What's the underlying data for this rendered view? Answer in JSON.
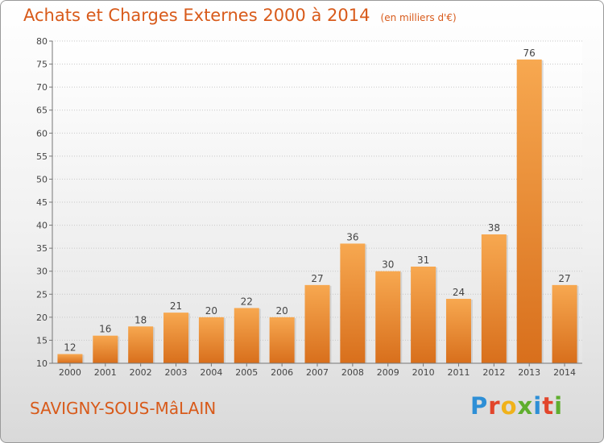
{
  "header": {
    "title": "Achats et Charges Externes 2000 à 2014",
    "subtitle": "(en milliers d'€)"
  },
  "footer": {
    "town": "SAVIGNY-SOUS-MâLAIN",
    "brand_letters": [
      "P",
      "r",
      "o",
      "x",
      "i",
      "t",
      "i"
    ],
    "brand_colors": [
      "#2e8fd6",
      "#e2452b",
      "#f0b21a",
      "#5fae2e",
      "#2e8fd6",
      "#e2452b",
      "#5fae2e"
    ]
  },
  "chart_data": {
    "type": "bar",
    "categories": [
      "2000",
      "2001",
      "2002",
      "2003",
      "2004",
      "2005",
      "2006",
      "2007",
      "2008",
      "2009",
      "2010",
      "2011",
      "2012",
      "2013",
      "2014"
    ],
    "values": [
      12,
      16,
      18,
      21,
      20,
      22,
      20,
      27,
      36,
      30,
      31,
      24,
      38,
      76,
      27
    ],
    "title": "Achats et Charges Externes 2000 à 2014",
    "subtitle": "(en milliers d'€)",
    "xlabel": "",
    "ylabel": "",
    "ylim": [
      10,
      80
    ],
    "yticks": [
      10,
      15,
      20,
      25,
      30,
      35,
      40,
      45,
      50,
      55,
      60,
      65,
      70,
      75,
      80
    ],
    "grid": true,
    "bar_color_top": "#f7a850",
    "bar_color_bottom": "#d86f1c",
    "text_color": "#d85a1a"
  }
}
